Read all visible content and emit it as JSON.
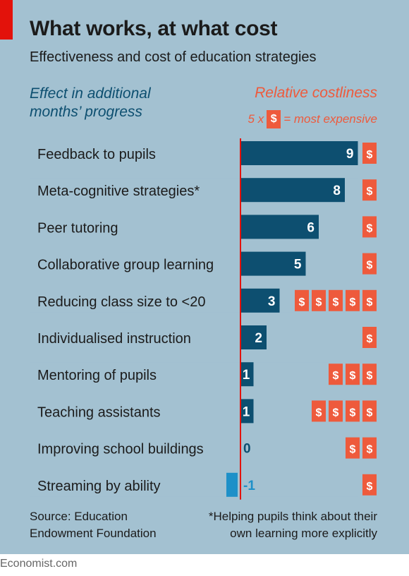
{
  "title": "What works, at what cost",
  "subtitle": "Effectiveness and cost of education strategies",
  "left_header_line1": "Effect in additional",
  "left_header_line2": "months’ progress",
  "right_header": "Relative costliness",
  "legend_prefix": "5 x",
  "legend_symbol": "$",
  "legend_suffix": "= most expensive",
  "source_line1": "Source: Education",
  "source_line2": "Endowment Foundation",
  "footnote_line1": "*Helping pupils think about their",
  "footnote_line2": "own learning more explicitly",
  "brand": "Economist.com",
  "colors": {
    "positive_bar": "#0d4f70",
    "negative_bar": "#1e90c8",
    "cost_badge": "#ee5a3c",
    "row_bar": "#a3c1d1",
    "zero_line": "#e3120b"
  },
  "chart_data": {
    "type": "bar",
    "title": "What works, at what cost",
    "xlabel": "Effect in additional months’ progress",
    "secondary_label": "Relative costliness (5 x $ = most expensive)",
    "xlim": [
      -1,
      10
    ],
    "categories": [
      "Feedback to pupils",
      "Meta-cognitive strategies*",
      "Peer tutoring",
      "Collaborative group learning",
      "Reducing class size to <20",
      "Individualised instruction",
      "Mentoring of pupils",
      "Teaching assistants",
      "Improving school buildings",
      "Streaming by ability"
    ],
    "series": [
      {
        "name": "Effect in additional months’ progress",
        "values": [
          9,
          8,
          6,
          5,
          3,
          2,
          1,
          1,
          0,
          -1
        ]
      },
      {
        "name": "Relative costliness",
        "values": [
          1,
          1,
          1,
          1,
          5,
          1,
          3,
          4,
          2,
          1
        ]
      }
    ],
    "value_labels": [
      "9",
      "8",
      "6",
      "5",
      "3",
      "2",
      "1",
      "1",
      "0",
      "-1"
    ]
  }
}
